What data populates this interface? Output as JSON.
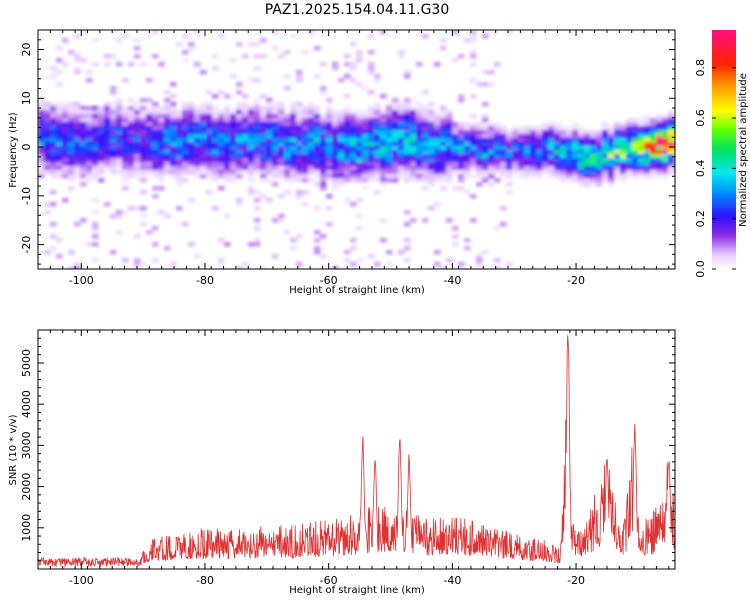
{
  "title": "PAZ1.2025.154.04.11.G30",
  "colorbar": {
    "label": "Normalized spectral amplitude",
    "ticks": [
      "0.0",
      "0.2",
      "0.4",
      "0.6",
      "0.8"
    ],
    "tick_values": [
      0.0,
      0.2,
      0.4,
      0.6,
      0.8
    ],
    "range": [
      0,
      0.95
    ]
  },
  "chart_data": [
    {
      "type": "heatmap",
      "xlabel": "Height of straight line (km)",
      "ylabel": "Frequency (Hz)",
      "xlim": [
        -107,
        -4
      ],
      "ylim": [
        -25,
        24
      ],
      "xticks": [
        -100,
        -80,
        -60,
        -40,
        -20
      ],
      "xtick_labels": [
        "-100",
        "-80",
        "-60",
        "-40",
        "-20"
      ],
      "yticks": [
        20,
        10,
        0,
        -10,
        -20
      ],
      "ytick_labels": [
        "20",
        "10",
        "0",
        "-10",
        "-20"
      ],
      "ridge": {
        "x": [
          -106,
          -100,
          -95,
          -90,
          -85,
          -80,
          -75,
          -70,
          -65,
          -60,
          -55,
          -50,
          -45,
          -40,
          -35,
          -30,
          -25,
          -22,
          -20,
          -15,
          -10,
          -5
        ],
        "frequency": [
          2,
          1,
          2,
          1,
          1,
          1,
          1,
          1,
          0.5,
          0,
          0,
          1,
          0.5,
          0,
          -0.5,
          -1,
          -0.5,
          -1,
          -2,
          -1.5,
          0,
          0.5
        ],
        "amplitude": [
          0.3,
          0.25,
          0.25,
          0.22,
          0.3,
          0.3,
          0.3,
          0.3,
          0.3,
          0.32,
          0.35,
          0.38,
          0.35,
          0.3,
          0.3,
          0.25,
          0.3,
          0.4,
          0.45,
          0.5,
          0.55,
          0.93
        ]
      },
      "colormap": "rainbow (white-violet-blue-cyan-green-yellow-red-magenta)"
    },
    {
      "type": "line",
      "xlabel": "Height of straight line (km)",
      "ylabel": "SNR (10 * v/v)",
      "xlim": [
        -107,
        -4
      ],
      "ylim": [
        0,
        5800
      ],
      "xticks": [
        -100,
        -80,
        -60,
        -40,
        -20
      ],
      "xtick_labels": [
        "-100",
        "-80",
        "-60",
        "-40",
        "-20"
      ],
      "yticks": [
        1000,
        2000,
        3000,
        4000,
        5000
      ],
      "ytick_labels": [
        "1000",
        "2000",
        "3000",
        "4000",
        "5000"
      ],
      "series_color": "#e03030",
      "envelope": {
        "x": [
          -107,
          -100,
          -95,
          -91,
          -89,
          -85,
          -80,
          -75,
          -70,
          -65,
          -60,
          -55,
          -53,
          -50,
          -48,
          -45,
          -40,
          -35,
          -30,
          -25,
          -22.5,
          -22,
          -21.5,
          -21,
          -20.5,
          -20,
          -18,
          -16,
          -15,
          -14,
          -12,
          -11,
          -10,
          -8,
          -6,
          -5,
          -4
        ],
        "y": [
          250,
          200,
          150,
          200,
          700,
          900,
          1000,
          1000,
          1050,
          1100,
          1200,
          1400,
          1600,
          1600,
          1500,
          1300,
          1300,
          1200,
          900,
          700,
          500,
          3500,
          5800,
          2500,
          1200,
          1000,
          1400,
          2200,
          2900,
          1800,
          1200,
          3400,
          1300,
          1200,
          2300,
          2800,
          1600
        ]
      },
      "peaks": [
        {
          "x": -54.5,
          "y": 3300
        },
        {
          "x": -52.5,
          "y": 2800
        },
        {
          "x": -48.5,
          "y": 3300
        },
        {
          "x": -47.0,
          "y": 2800
        },
        {
          "x": -21.3,
          "y": 5800
        },
        {
          "x": -15.0,
          "y": 2900
        },
        {
          "x": -10.5,
          "y": 3600
        },
        {
          "x": -5.0,
          "y": 2800
        }
      ]
    }
  ]
}
